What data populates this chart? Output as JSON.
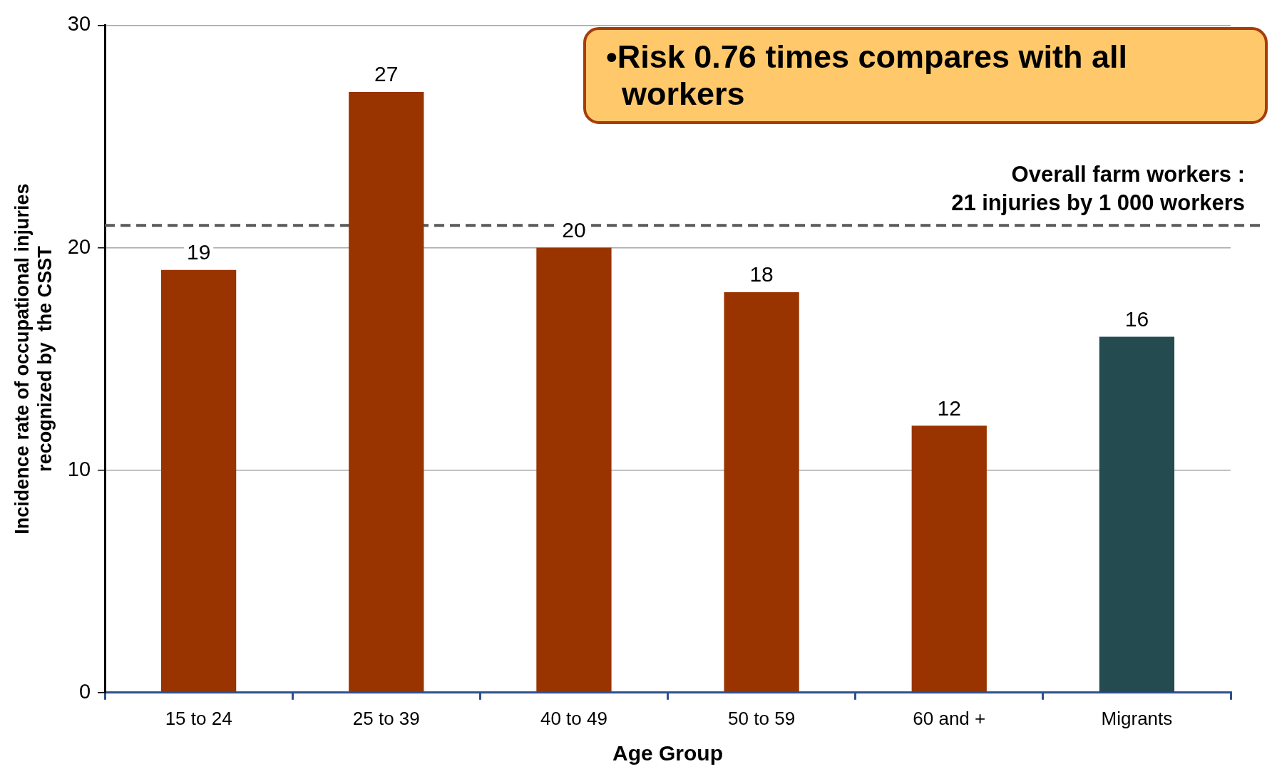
{
  "chart_data": {
    "type": "bar",
    "xlabel": "Age Group",
    "ylabel": "Incidence rate of occupational injuries recognized by  the CSST",
    "categories": [
      "15 to 24",
      "25 to 39",
      "40 to 49",
      "50 to 59",
      "60 and +",
      "Migrants"
    ],
    "values": [
      19,
      27,
      20,
      18,
      12,
      16
    ],
    "colors": [
      "#993300",
      "#993300",
      "#993300",
      "#993300",
      "#993300",
      "#234b50"
    ],
    "data_labels": true,
    "ylim": [
      0,
      30
    ],
    "yticks": [
      0,
      10,
      20,
      30
    ],
    "grid": "y",
    "legend": false,
    "ref_lines": [
      {
        "axis": "y",
        "value": 21,
        "label": "Overall farm workers : 21 injuries by 1 000 workers",
        "color": "#595959",
        "line_style": "dashed"
      }
    ],
    "annotations": [
      "•Risk 0.76 times compares with all workers"
    ]
  }
}
